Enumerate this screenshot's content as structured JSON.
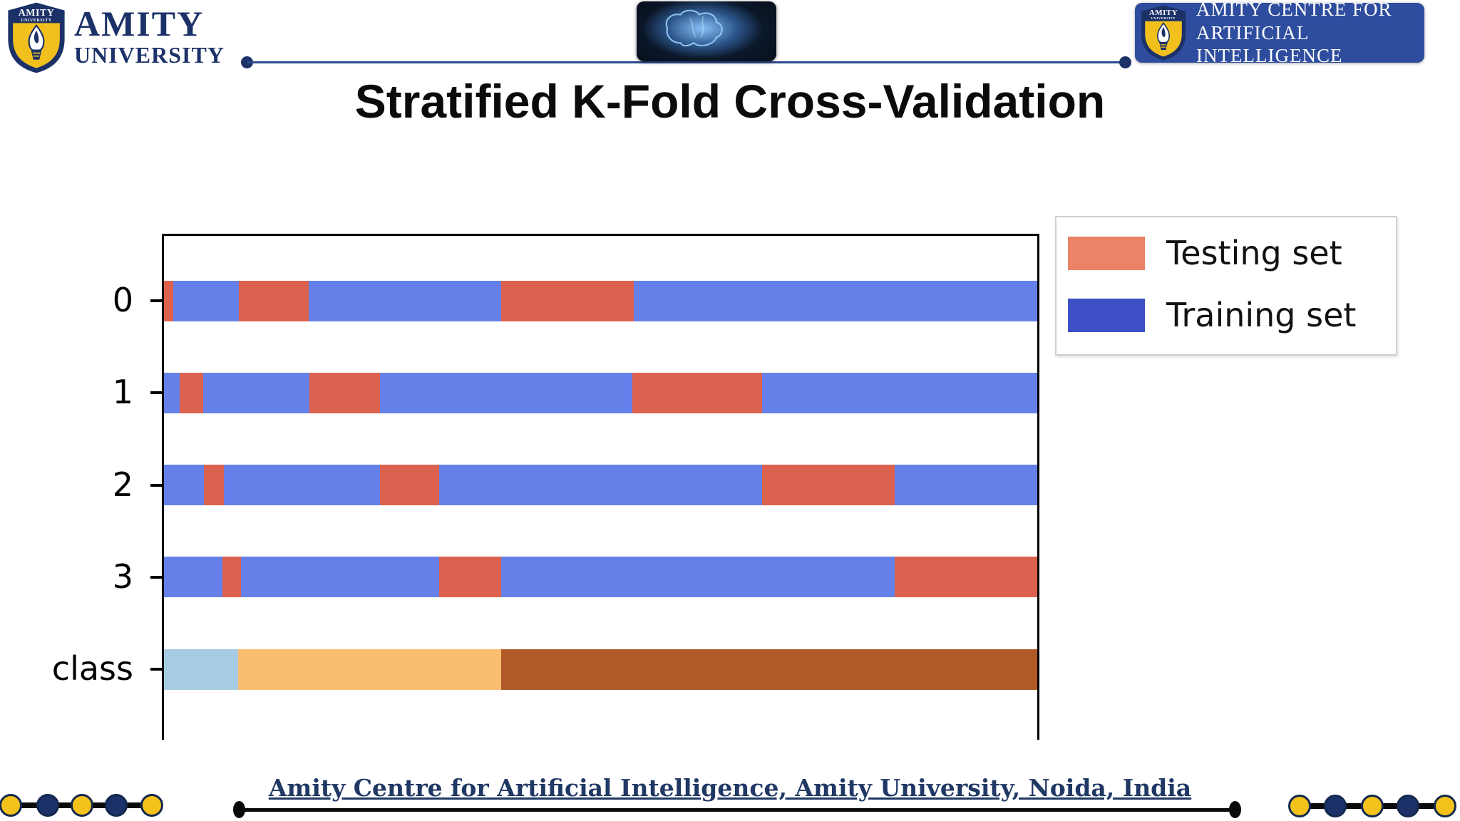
{
  "header": {
    "logo_left": {
      "shield_line1": "AMITY",
      "shield_line2": "UNIVERSITY",
      "name_top": "AMITY",
      "name_bottom": "UNIVERSITY"
    },
    "badge_right": {
      "shield_line1": "AMITY",
      "shield_line2": "UNIVERSITY",
      "line1": "AMITY CENTRE FOR",
      "line2": "ARTIFICIAL INTELLIGENCE"
    }
  },
  "title": "Stratified K-Fold Cross-Validation",
  "chart_data": {
    "type": "bar",
    "orientation": "horizontal-stacked",
    "description": "Stratified 4-fold cross-validation split indicator: for each CV iteration (rows 0-3) sample indices are colored as testing or training; bottom row shows class membership of the samples. Segment values are fractions of the sample-index axis (0 to 1).",
    "xlim": [
      0,
      1
    ],
    "grid": false,
    "legend_position": "upper right, outside plot",
    "colors": {
      "testing": "#dc614f",
      "training": "#6580e8",
      "class0": "#a6cbe3",
      "class1": "#fbbe70",
      "class2": "#b05a28"
    },
    "rows": [
      {
        "label": "0",
        "segments": [
          [
            "testing",
            0.0106
          ],
          [
            "training",
            0.0751
          ],
          [
            "testing",
            0.08
          ],
          [
            "training",
            0.2204
          ],
          [
            "testing",
            0.1518
          ],
          [
            "training",
            0.4621
          ]
        ]
      },
      {
        "label": "1",
        "segments": [
          [
            "training",
            0.018
          ],
          [
            "testing",
            0.0269
          ],
          [
            "training",
            0.1216
          ],
          [
            "testing",
            0.0808
          ],
          [
            "training",
            0.289
          ],
          [
            "testing",
            0.1486
          ],
          [
            "training",
            0.3151
          ]
        ]
      },
      {
        "label": "2",
        "segments": [
          [
            "training",
            0.0457
          ],
          [
            "testing",
            0.0229
          ],
          [
            "training",
            0.1788
          ],
          [
            "testing",
            0.0678
          ],
          [
            "training",
            0.3698
          ],
          [
            "testing",
            0.1518
          ],
          [
            "training",
            0.1633
          ]
        ]
      },
      {
        "label": "3",
        "segments": [
          [
            "training",
            0.0669
          ],
          [
            "testing",
            0.0212
          ],
          [
            "training",
            0.2269
          ],
          [
            "testing",
            0.071
          ],
          [
            "training",
            0.4506
          ],
          [
            "testing",
            0.1633
          ]
        ]
      },
      {
        "label": "class",
        "segments": [
          [
            "class0",
            0.0849
          ],
          [
            "class1",
            0.3012
          ],
          [
            "class2",
            0.6139
          ]
        ]
      }
    ],
    "legend": [
      {
        "label": "Testing set",
        "color": "#ec8266"
      },
      {
        "label": "Training set",
        "color": "#3d4fc4"
      }
    ]
  },
  "footer": {
    "text": "Amity Centre for Artificial Intelligence, Amity University, Noida, India"
  }
}
